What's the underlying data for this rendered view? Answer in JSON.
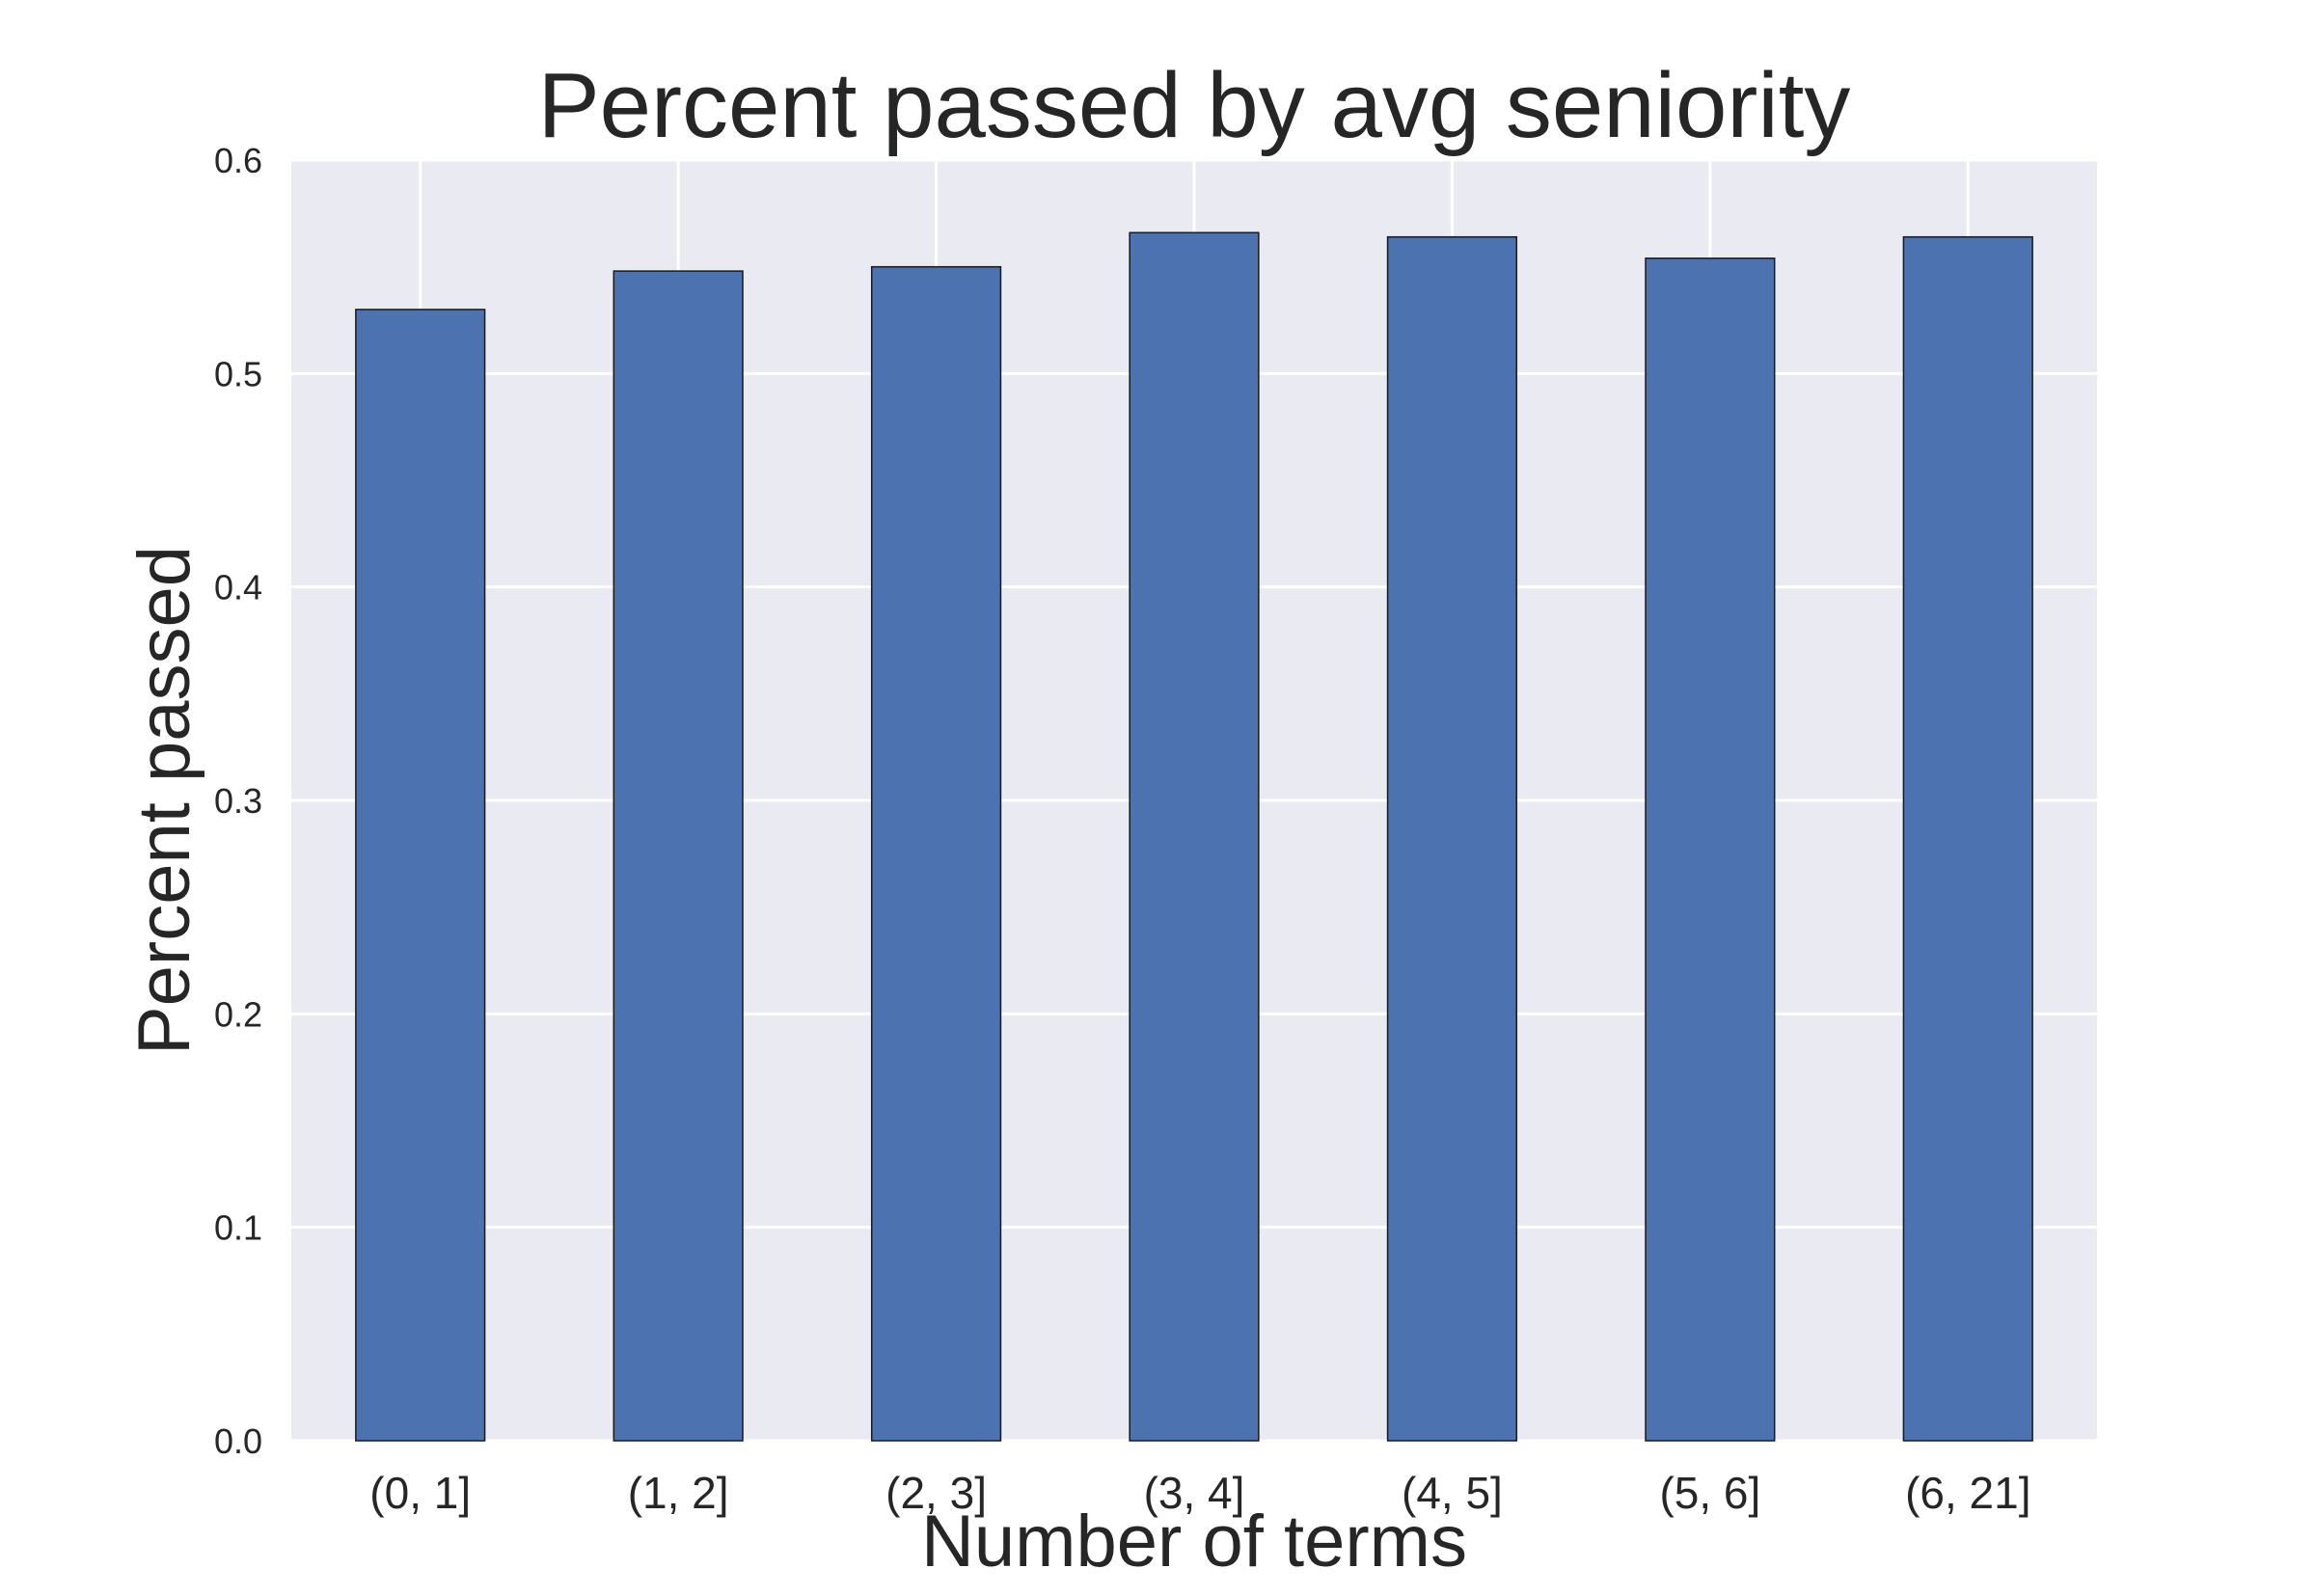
{
  "chart_data": {
    "type": "bar",
    "title": "Percent passed by avg seniority",
    "xlabel": "Number of terms",
    "ylabel": "Percent passed",
    "categories": [
      "(0, 1]",
      "(1, 2]",
      "(2, 3]",
      "(3, 4]",
      "(4, 5]",
      "(5, 6]",
      "(6, 21]"
    ],
    "values": [
      0.53,
      0.548,
      0.55,
      0.566,
      0.564,
      0.554,
      0.564
    ],
    "ylim": [
      0,
      0.6
    ],
    "yticks": [
      "0.0",
      "0.1",
      "0.2",
      "0.3",
      "0.4",
      "0.5",
      "0.6"
    ],
    "grid": true,
    "colors": {
      "bar": "#4c72b0",
      "bar_edge": "#1a1a1a",
      "plot_background": "#eaeaf2",
      "grid": "#ffffff",
      "text": "#262626"
    }
  }
}
